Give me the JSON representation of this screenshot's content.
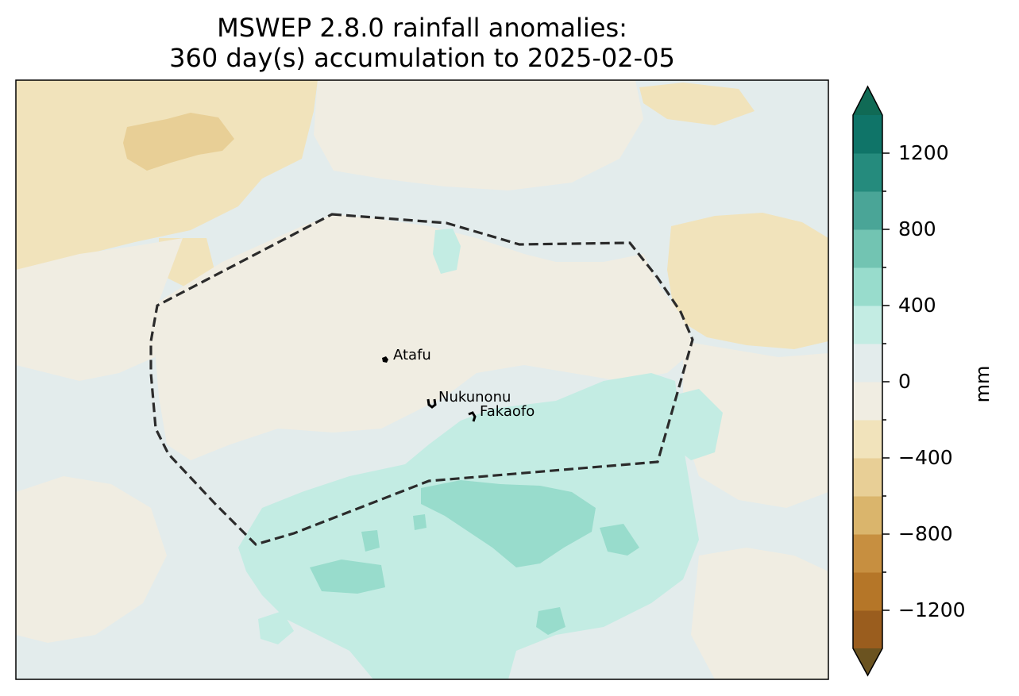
{
  "title": {
    "line1": "MSWEP 2.8.0 rainfall anomalies:",
    "line2": "360 day(s) accumulation to 2025-02-05"
  },
  "places": [
    {
      "name": "Atafu"
    },
    {
      "name": "Nukunonu"
    },
    {
      "name": "Fakaofo"
    }
  ],
  "colorbar": {
    "unit": "mm",
    "tick_labels": [
      "1200",
      "800",
      "400",
      "0",
      "−400",
      "−800",
      "−1200"
    ],
    "levels": [
      -1400,
      -1200,
      -1000,
      -800,
      -600,
      -400,
      -200,
      0,
      200,
      400,
      600,
      800,
      1000,
      1200,
      1400
    ],
    "colors": [
      "#9a5d1e",
      "#b57628",
      "#c78f40",
      "#dab56c",
      "#e8cf96",
      "#f1e3bb",
      "#f0ede2",
      "#e3ecec",
      "#c3ece3",
      "#98dccc",
      "#72c4b2",
      "#4aa597",
      "#258b7d",
      "#0f7468"
    ],
    "extend_low_color": "#6b5320",
    "extend_high_color": "#106a55"
  },
  "chart_data": {
    "type": "heatmap",
    "title": "MSWEP 2.8.0 rainfall anomalies: 360 day(s) accumulation to 2025-02-05",
    "colorbar_label": "mm",
    "colorbar_ticks": [
      -1200,
      -800,
      -400,
      0,
      400,
      800,
      1200
    ],
    "colorbar_range": [
      -1400,
      1400
    ],
    "extend": "both",
    "locations": [
      "Atafu",
      "Nukunonu",
      "Fakaofo"
    ]
  }
}
